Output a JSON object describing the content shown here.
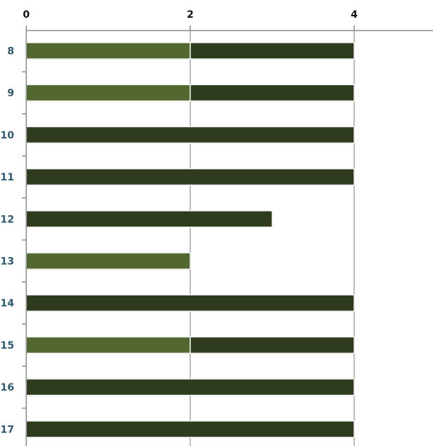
{
  "chart_data": {
    "type": "bar",
    "orientation": "horizontal",
    "stacked": true,
    "categories": [
      "8",
      "9",
      "10",
      "11",
      "12",
      "13",
      "14",
      "15",
      "16",
      "17"
    ],
    "series": [
      {
        "values": [
          2,
          2,
          0,
          0,
          0,
          2,
          0,
          2,
          0,
          0
        ],
        "color": "#53682f"
      },
      {
        "values": [
          2,
          2,
          4,
          4,
          3,
          0,
          4,
          2,
          4,
          4
        ],
        "color": "#2e3b1c"
      }
    ],
    "x_ticks": [
      "0",
      "2",
      "4"
    ],
    "xlim": [
      0,
      6.2
    ],
    "x_axis_position": "top",
    "grid": "vertical",
    "legend": "none"
  }
}
